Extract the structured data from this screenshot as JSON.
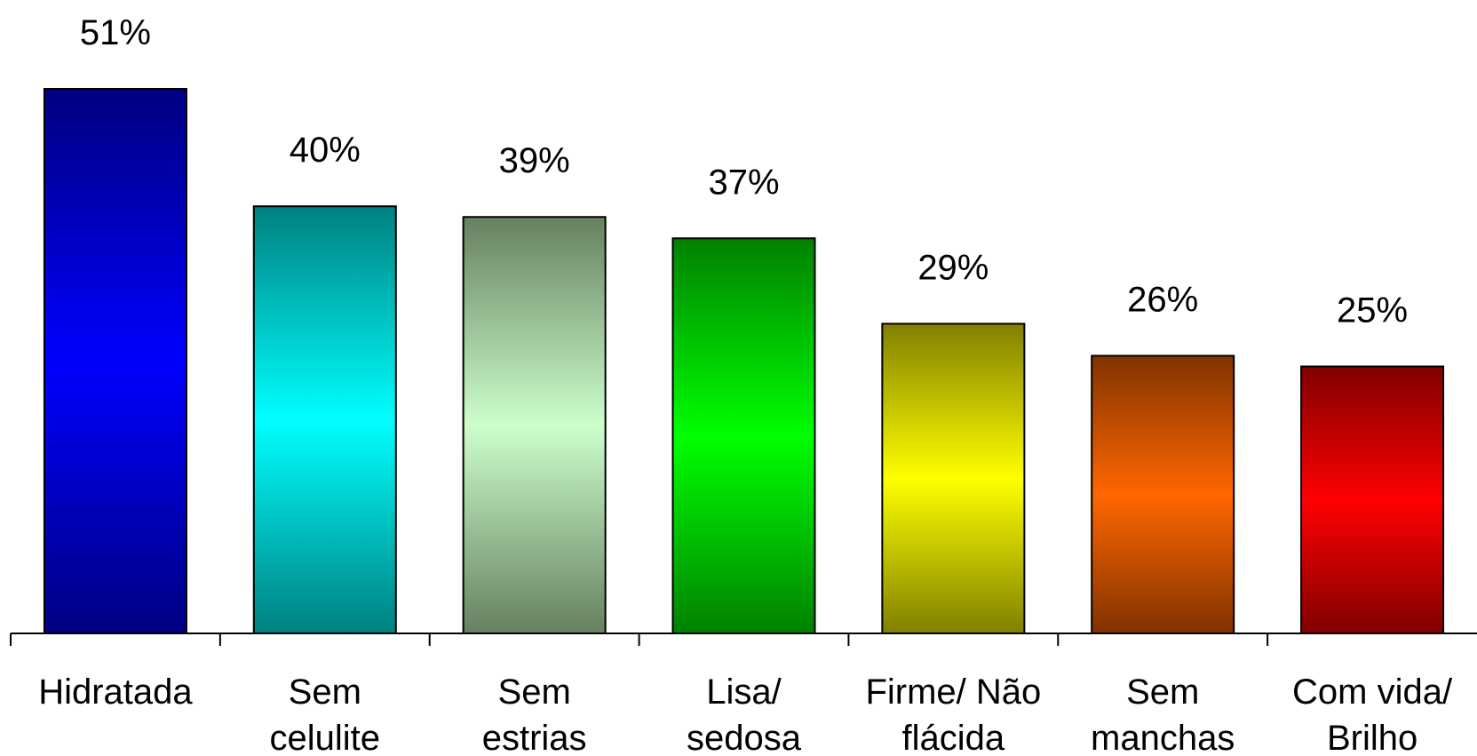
{
  "chart_data": {
    "type": "bar",
    "categories": [
      [
        "Hidratada"
      ],
      [
        "Sem",
        "celulite"
      ],
      [
        "Sem",
        "estrias"
      ],
      [
        "Lisa/",
        "sedosa"
      ],
      [
        "Firme/ Não",
        "flácida"
      ],
      [
        "Sem",
        "manchas"
      ],
      [
        "Com vida/",
        "Brilho"
      ]
    ],
    "values": [
      51,
      40,
      39,
      37,
      29,
      26,
      25
    ],
    "data_labels": [
      "51%",
      "40%",
      "39%",
      "37%",
      "29%",
      "26%",
      "25%"
    ],
    "unit": "%",
    "ylim": [
      0,
      51
    ],
    "grid": false,
    "legend": "none",
    "bar_colors": [
      {
        "edge": "#000080",
        "mid": "#0000ff"
      },
      {
        "edge": "#008080",
        "mid": "#00ffff"
      },
      {
        "edge": "#668060",
        "mid": "#ccffcc"
      },
      {
        "edge": "#008000",
        "mid": "#00ff00"
      },
      {
        "edge": "#808000",
        "mid": "#ffff00"
      },
      {
        "edge": "#803300",
        "mid": "#ff6600"
      },
      {
        "edge": "#800000",
        "mid": "#ff0000"
      }
    ],
    "axis_color": "#000000"
  }
}
